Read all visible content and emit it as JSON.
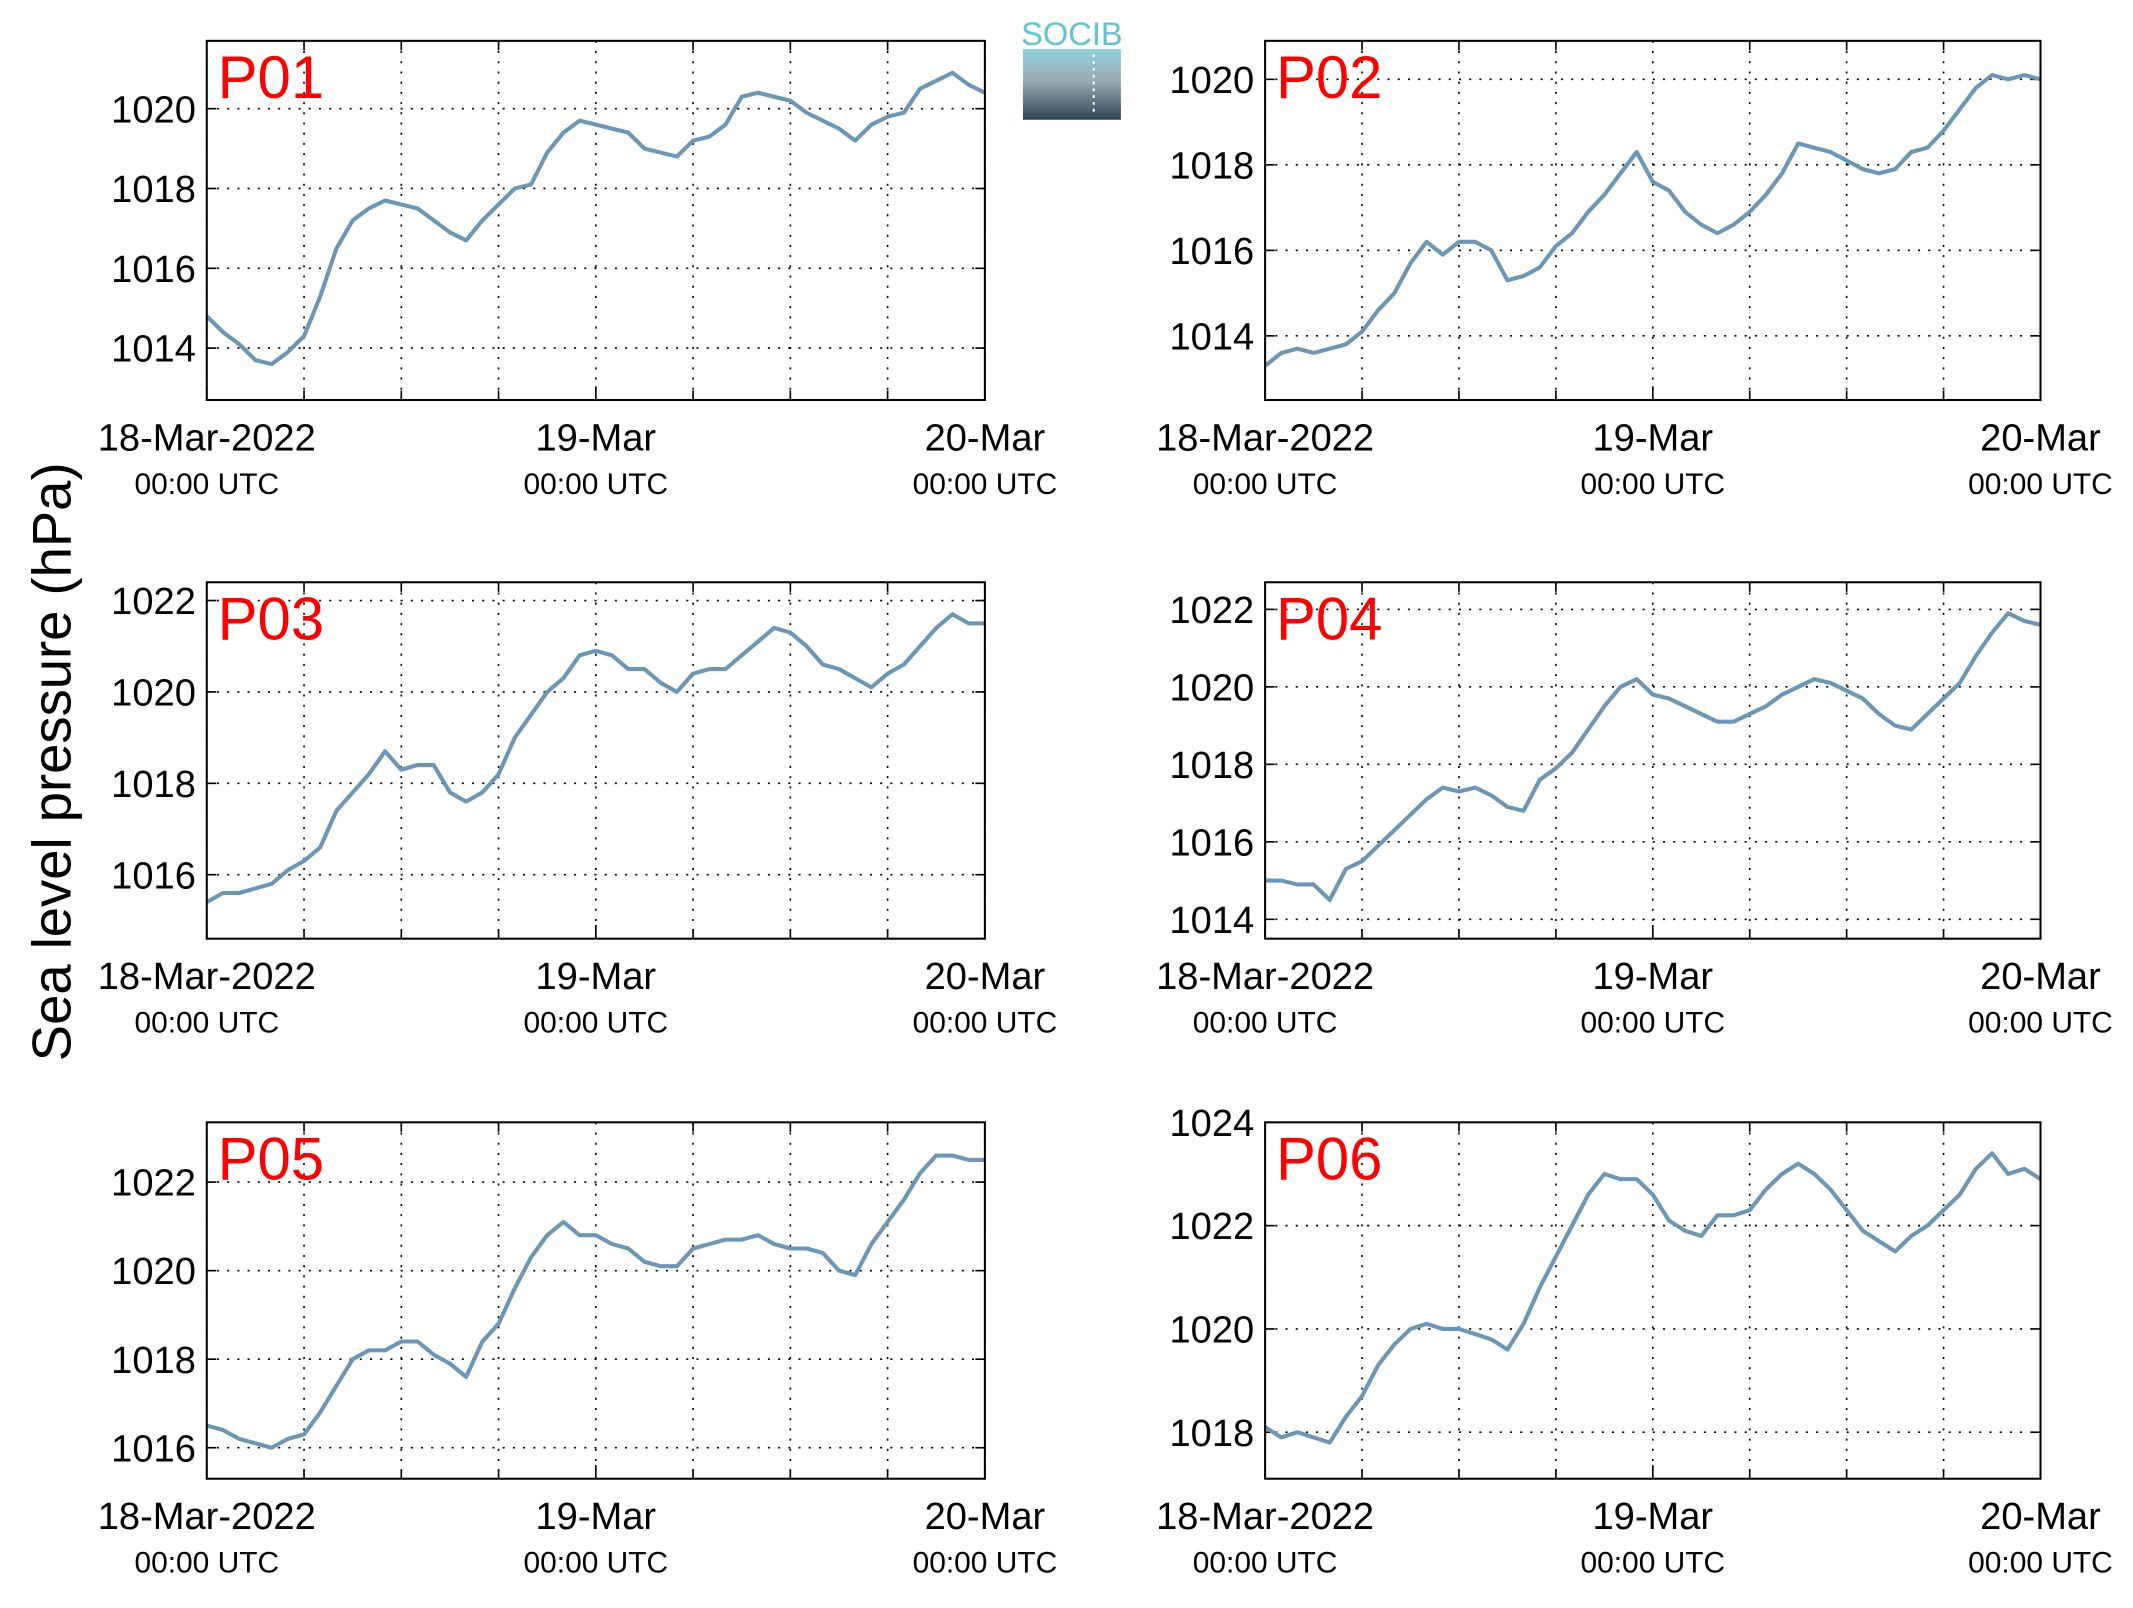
{
  "ylabel": "Sea level pressure (hPa)",
  "logo": "SOCIB",
  "chart_data": [
    {
      "type": "line",
      "label": "P01",
      "color": "#6b96b8",
      "grid": true,
      "xlim": [
        0,
        48
      ],
      "xticks": [
        {
          "value": 0,
          "label": "18-Mar-2022",
          "sublabel": "00:00 UTC"
        },
        {
          "value": 24,
          "label": "19-Mar",
          "sublabel": "00:00 UTC"
        },
        {
          "value": 48,
          "label": "20-Mar",
          "sublabel": "00:00 UTC"
        }
      ],
      "xminorticks": [
        6,
        12,
        18,
        30,
        36,
        42
      ],
      "ylim": [
        1012.7,
        1021.7
      ],
      "yticks": [
        1014,
        1016,
        1018,
        1020
      ],
      "x": [
        0,
        1,
        2,
        3,
        4,
        5,
        6,
        7,
        8,
        9,
        10,
        11,
        12,
        13,
        14,
        15,
        16,
        17,
        18,
        19,
        20,
        21,
        22,
        23,
        24,
        25,
        26,
        27,
        28,
        29,
        30,
        31,
        32,
        33,
        34,
        35,
        36,
        37,
        38,
        39,
        40,
        41,
        42,
        43,
        44,
        45,
        46,
        47,
        48
      ],
      "values": [
        1014.8,
        1014.4,
        1014.1,
        1013.7,
        1013.6,
        1013.9,
        1014.3,
        1015.3,
        1016.5,
        1017.2,
        1017.5,
        1017.7,
        1017.6,
        1017.5,
        1017.2,
        1016.9,
        1016.7,
        1017.2,
        1017.6,
        1018.0,
        1018.1,
        1018.9,
        1019.4,
        1019.7,
        1019.6,
        1019.5,
        1019.4,
        1019.0,
        1018.9,
        1018.8,
        1019.2,
        1019.3,
        1019.6,
        1020.3,
        1020.4,
        1020.3,
        1020.2,
        1019.9,
        1019.7,
        1019.5,
        1019.2,
        1019.6,
        1019.8,
        1019.9,
        1020.5,
        1020.7,
        1020.9,
        1020.6,
        1020.4
      ]
    },
    {
      "type": "line",
      "label": "P02",
      "color": "#6b96b8",
      "grid": true,
      "xlim": [
        0,
        48
      ],
      "xticks": [
        {
          "value": 0,
          "label": "18-Mar-2022",
          "sublabel": "00:00 UTC"
        },
        {
          "value": 24,
          "label": "19-Mar",
          "sublabel": "00:00 UTC"
        },
        {
          "value": 48,
          "label": "20-Mar",
          "sublabel": "00:00 UTC"
        }
      ],
      "xminorticks": [
        6,
        12,
        18,
        30,
        36,
        42
      ],
      "ylim": [
        1012.5,
        1020.9
      ],
      "yticks": [
        1014,
        1016,
        1018,
        1020
      ],
      "x": [
        0,
        1,
        2,
        3,
        4,
        5,
        6,
        7,
        8,
        9,
        10,
        11,
        12,
        13,
        14,
        15,
        16,
        17,
        18,
        19,
        20,
        21,
        22,
        23,
        24,
        25,
        26,
        27,
        28,
        29,
        30,
        31,
        32,
        33,
        34,
        35,
        36,
        37,
        38,
        39,
        40,
        41,
        42,
        43,
        44,
        45,
        46,
        47,
        48
      ],
      "values": [
        1013.3,
        1013.6,
        1013.7,
        1013.6,
        1013.7,
        1013.8,
        1014.1,
        1014.6,
        1015.0,
        1015.7,
        1016.2,
        1015.9,
        1016.2,
        1016.2,
        1016.0,
        1015.3,
        1015.4,
        1015.6,
        1016.1,
        1016.4,
        1016.9,
        1017.3,
        1017.8,
        1018.3,
        1017.6,
        1017.4,
        1016.9,
        1016.6,
        1016.4,
        1016.6,
        1016.9,
        1017.3,
        1017.8,
        1018.5,
        1018.4,
        1018.3,
        1018.1,
        1017.9,
        1017.8,
        1017.9,
        1018.3,
        1018.4,
        1018.8,
        1019.3,
        1019.8,
        1020.1,
        1020.0,
        1020.1,
        1020.0
      ]
    },
    {
      "type": "line",
      "label": "P03",
      "color": "#6b96b8",
      "grid": true,
      "xlim": [
        0,
        48
      ],
      "xticks": [
        {
          "value": 0,
          "label": "18-Mar-2022",
          "sublabel": "00:00 UTC"
        },
        {
          "value": 24,
          "label": "19-Mar",
          "sublabel": "00:00 UTC"
        },
        {
          "value": 48,
          "label": "20-Mar",
          "sublabel": "00:00 UTC"
        }
      ],
      "xminorticks": [
        6,
        12,
        18,
        30,
        36,
        42
      ],
      "ylim": [
        1014.6,
        1022.4
      ],
      "yticks": [
        1016,
        1018,
        1020,
        1022
      ],
      "x": [
        0,
        1,
        2,
        3,
        4,
        5,
        6,
        7,
        8,
        9,
        10,
        11,
        12,
        13,
        14,
        15,
        16,
        17,
        18,
        19,
        20,
        21,
        22,
        23,
        24,
        25,
        26,
        27,
        28,
        29,
        30,
        31,
        32,
        33,
        34,
        35,
        36,
        37,
        38,
        39,
        40,
        41,
        42,
        43,
        44,
        45,
        46,
        47,
        48
      ],
      "values": [
        1015.4,
        1015.6,
        1015.6,
        1015.7,
        1015.8,
        1016.1,
        1016.3,
        1016.6,
        1017.4,
        1017.8,
        1018.2,
        1018.7,
        1018.3,
        1018.4,
        1018.4,
        1017.8,
        1017.6,
        1017.8,
        1018.2,
        1019.0,
        1019.5,
        1020.0,
        1020.3,
        1020.8,
        1020.9,
        1020.8,
        1020.5,
        1020.5,
        1020.2,
        1020.0,
        1020.4,
        1020.5,
        1020.5,
        1020.8,
        1021.1,
        1021.4,
        1021.3,
        1021.0,
        1020.6,
        1020.5,
        1020.3,
        1020.1,
        1020.4,
        1020.6,
        1021.0,
        1021.4,
        1021.7,
        1021.5,
        1021.5
      ]
    },
    {
      "type": "line",
      "label": "P04",
      "color": "#6b96b8",
      "grid": true,
      "xlim": [
        0,
        48
      ],
      "xticks": [
        {
          "value": 0,
          "label": "18-Mar-2022",
          "sublabel": "00:00 UTC"
        },
        {
          "value": 24,
          "label": "19-Mar",
          "sublabel": "00:00 UTC"
        },
        {
          "value": 48,
          "label": "20-Mar",
          "sublabel": "00:00 UTC"
        }
      ],
      "xminorticks": [
        6,
        12,
        18,
        30,
        36,
        42
      ],
      "ylim": [
        1013.5,
        1022.7
      ],
      "yticks": [
        1014,
        1016,
        1018,
        1020,
        1022
      ],
      "x": [
        0,
        1,
        2,
        3,
        4,
        5,
        6,
        7,
        8,
        9,
        10,
        11,
        12,
        13,
        14,
        15,
        16,
        17,
        18,
        19,
        20,
        21,
        22,
        23,
        24,
        25,
        26,
        27,
        28,
        29,
        30,
        31,
        32,
        33,
        34,
        35,
        36,
        37,
        38,
        39,
        40,
        41,
        42,
        43,
        44,
        45,
        46,
        47,
        48
      ],
      "values": [
        1015.0,
        1015.0,
        1014.9,
        1014.9,
        1014.5,
        1015.3,
        1015.5,
        1015.9,
        1016.3,
        1016.7,
        1017.1,
        1017.4,
        1017.3,
        1017.4,
        1017.2,
        1016.9,
        1016.8,
        1017.6,
        1017.9,
        1018.3,
        1018.9,
        1019.5,
        1020.0,
        1020.2,
        1019.8,
        1019.7,
        1019.5,
        1019.3,
        1019.1,
        1019.1,
        1019.3,
        1019.5,
        1019.8,
        1020.0,
        1020.2,
        1020.1,
        1019.9,
        1019.7,
        1019.3,
        1019.0,
        1018.9,
        1019.3,
        1019.7,
        1020.1,
        1020.8,
        1021.4,
        1021.9,
        1021.7,
        1021.6
      ]
    },
    {
      "type": "line",
      "label": "P05",
      "color": "#6b96b8",
      "grid": true,
      "xlim": [
        0,
        48
      ],
      "xticks": [
        {
          "value": 0,
          "label": "18-Mar-2022",
          "sublabel": "00:00 UTC"
        },
        {
          "value": 24,
          "label": "19-Mar",
          "sublabel": "00:00 UTC"
        },
        {
          "value": 48,
          "label": "20-Mar",
          "sublabel": "00:00 UTC"
        }
      ],
      "xminorticks": [
        6,
        12,
        18,
        30,
        36,
        42
      ],
      "ylim": [
        1015.3,
        1023.35
      ],
      "yticks": [
        1016,
        1018,
        1020,
        1022
      ],
      "x": [
        0,
        1,
        2,
        3,
        4,
        5,
        6,
        7,
        8,
        9,
        10,
        11,
        12,
        13,
        14,
        15,
        16,
        17,
        18,
        19,
        20,
        21,
        22,
        23,
        24,
        25,
        26,
        27,
        28,
        29,
        30,
        31,
        32,
        33,
        34,
        35,
        36,
        37,
        38,
        39,
        40,
        41,
        42,
        43,
        44,
        45,
        46,
        47,
        48
      ],
      "values": [
        1016.5,
        1016.4,
        1016.2,
        1016.1,
        1016.0,
        1016.2,
        1016.3,
        1016.8,
        1017.4,
        1018.0,
        1018.2,
        1018.2,
        1018.4,
        1018.4,
        1018.1,
        1017.9,
        1017.6,
        1018.4,
        1018.8,
        1019.6,
        1020.3,
        1020.8,
        1021.1,
        1020.8,
        1020.8,
        1020.6,
        1020.5,
        1020.2,
        1020.1,
        1020.1,
        1020.5,
        1020.6,
        1020.7,
        1020.7,
        1020.8,
        1020.6,
        1020.5,
        1020.5,
        1020.4,
        1020.0,
        1019.9,
        1020.6,
        1021.1,
        1021.6,
        1022.2,
        1022.6,
        1022.6,
        1022.5,
        1022.5
      ]
    },
    {
      "type": "line",
      "label": "P06",
      "color": "#6b96b8",
      "grid": true,
      "xlim": [
        0,
        48
      ],
      "xticks": [
        {
          "value": 0,
          "label": "18-Mar-2022",
          "sublabel": "00:00 UTC"
        },
        {
          "value": 24,
          "label": "19-Mar",
          "sublabel": "00:00 UTC"
        },
        {
          "value": 48,
          "label": "20-Mar",
          "sublabel": "00:00 UTC"
        }
      ],
      "xminorticks": [
        6,
        12,
        18,
        30,
        36,
        42
      ],
      "ylim": [
        1017.1,
        1024.0
      ],
      "yticks": [
        1018,
        1020,
        1022,
        1024
      ],
      "x": [
        0,
        1,
        2,
        3,
        4,
        5,
        6,
        7,
        8,
        9,
        10,
        11,
        12,
        13,
        14,
        15,
        16,
        17,
        18,
        19,
        20,
        21,
        22,
        23,
        24,
        25,
        26,
        27,
        28,
        29,
        30,
        31,
        32,
        33,
        34,
        35,
        36,
        37,
        38,
        39,
        40,
        41,
        42,
        43,
        44,
        45,
        46,
        47,
        48
      ],
      "values": [
        1018.1,
        1017.9,
        1018.0,
        1017.9,
        1017.8,
        1018.3,
        1018.7,
        1019.3,
        1019.7,
        1020.0,
        1020.1,
        1020.0,
        1020.0,
        1019.9,
        1019.8,
        1019.6,
        1020.1,
        1020.8,
        1021.4,
        1022.0,
        1022.6,
        1023.0,
        1022.9,
        1022.9,
        1022.6,
        1022.1,
        1021.9,
        1021.8,
        1022.2,
        1022.2,
        1022.3,
        1022.7,
        1023.0,
        1023.2,
        1023.0,
        1022.7,
        1022.3,
        1021.9,
        1021.7,
        1021.5,
        1021.8,
        1022.0,
        1022.3,
        1022.6,
        1023.1,
        1023.4,
        1023.0,
        1023.1,
        1022.9
      ]
    }
  ]
}
